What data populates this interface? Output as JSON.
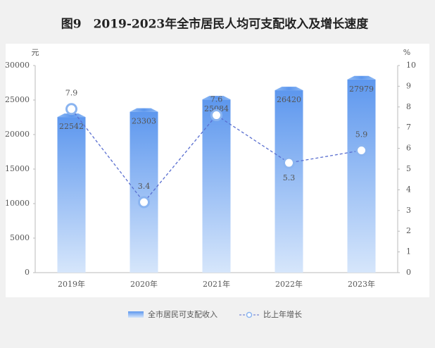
{
  "chart_data": {
    "type": "bar-line",
    "title": "图9　2019-2023年全市居民人均可支配收入及增长速度",
    "y_unit": "元",
    "y2_unit": "%",
    "categories": [
      "2019年",
      "2020年",
      "2021年",
      "2022年",
      "2023年"
    ],
    "series": [
      {
        "name": "全市居民可支配收入",
        "color": "#6fa3ee",
        "values": [
          22542,
          23303,
          25084,
          26420,
          27979
        ]
      },
      {
        "name": "比上年增长",
        "color": "#5a6fd0",
        "axis": "y2",
        "values": [
          7.9,
          3.4,
          7.6,
          5.3,
          5.9
        ]
      }
    ],
    "ylim": [
      0,
      30000
    ],
    "yticks": [
      0,
      5000,
      10000,
      15000,
      20000,
      25000,
      30000
    ],
    "y2lim": [
      0,
      10
    ],
    "y2ticks": [
      0,
      1,
      2,
      3,
      4,
      5,
      6,
      7,
      8,
      9,
      10
    ]
  }
}
